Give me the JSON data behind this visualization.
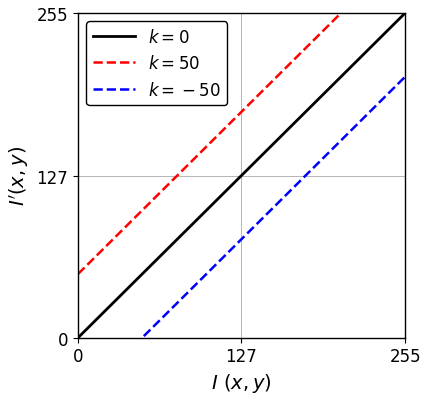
{
  "xlabel": "$I\\ (x,y)$",
  "ylabel": "$I^{\\prime}(x,y)$",
  "xlim": [
    0,
    255
  ],
  "ylim": [
    0,
    255
  ],
  "xticks": [
    0,
    127,
    255
  ],
  "yticks": [
    0,
    127,
    255
  ],
  "grid_color": "#aaaaaa",
  "lines": [
    {
      "label": "$k=0$",
      "k": 0,
      "color": "black",
      "linestyle": "solid",
      "linewidth": 2.0
    },
    {
      "label": "$k=50$",
      "k": 50,
      "color": "red",
      "linestyle": "dashed",
      "linewidth": 1.8
    },
    {
      "label": "$k=-50$",
      "k": -50,
      "color": "blue",
      "linestyle": "dashed",
      "linewidth": 1.8
    }
  ],
  "legend_loc": "upper left",
  "figsize": [
    4.28,
    4.02
  ],
  "dpi": 100
}
